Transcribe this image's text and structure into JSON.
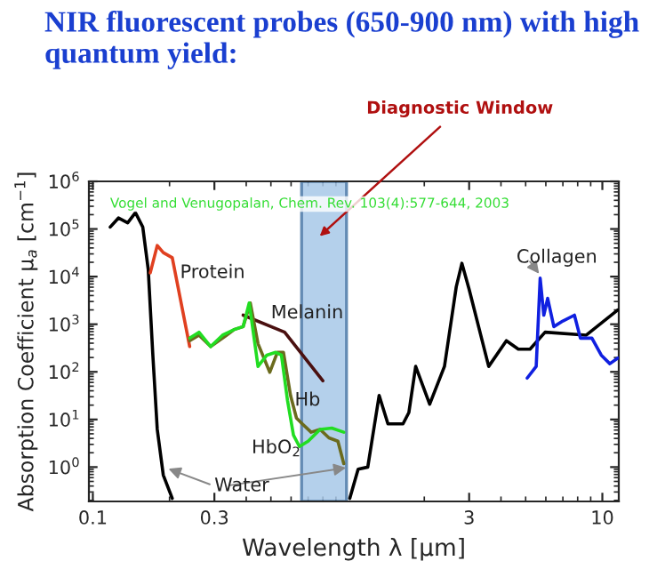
{
  "chart_data": {
    "type": "line",
    "title": "NIR fluorescent probes (650-900 nm) with high quantum yield:",
    "xlabel": "Wavelength λ [μm]",
    "ylabel": "Absorption Coefficient μ$_{a}$ [cm$^{−1}$]",
    "log": "xy",
    "xlim": [
      0.0965,
      11.6
    ],
    "ylim": [
      0.19,
      1000000
    ],
    "xticks": [
      0.1,
      0.3,
      3,
      10
    ],
    "yticks": [
      {
        "value": 1,
        "label": "10$^{0}$"
      },
      {
        "value": 10,
        "label": "10$^{1}$"
      },
      {
        "value": 100,
        "label": "10$^{2}$"
      },
      {
        "value": 1000,
        "label": "10$^{3}$"
      },
      {
        "value": 10000,
        "label": "10$^{4}$"
      },
      {
        "value": 100000,
        "label": "10$^{5}$"
      },
      {
        "value": 1000000,
        "label": "10$^{6}$"
      }
    ],
    "grid": false,
    "legend": false,
    "series": [
      {
        "name": "Water",
        "color": "#000000",
        "x": [
          0.117,
          0.126,
          0.137,
          0.147,
          0.157,
          0.165,
          0.172,
          0.179,
          0.189,
          0.205,
          0.5,
          1.02,
          1.1,
          1.2,
          1.33,
          1.44,
          1.65,
          1.74,
          1.85,
          2.1,
          2.4,
          2.67,
          2.81,
          3.0,
          3.58,
          4.2,
          4.68,
          5.2,
          5.96,
          8.65,
          11.5
        ],
        "values": [
          110000,
          170000,
          135000,
          220000,
          110000,
          14000,
          224,
          6.2,
          0.68,
          0.22,
          null,
          0.22,
          0.9,
          1.0,
          32,
          8.1,
          8.1,
          14,
          130,
          21,
          130,
          6100,
          19000,
          5400,
          130,
          450,
          300,
          300,
          680,
          590,
          2000
        ]
      },
      {
        "name": "Protein",
        "color": "#e04020",
        "x": [
          0.168,
          0.179,
          0.189,
          0.205,
          0.24
        ],
        "values": [
          12000,
          45000,
          32000,
          25000,
          340
        ]
      },
      {
        "name": "Melanin",
        "color": "#4a1010",
        "x": [
          0.389,
          0.566,
          0.8
        ],
        "values": [
          1550,
          680,
          65
        ]
      },
      {
        "name": "Hb",
        "color": "#6b6b1e",
        "x": [
          0.24,
          0.261,
          0.29,
          0.323,
          0.359,
          0.389,
          0.415,
          0.445,
          0.495,
          0.53,
          0.56,
          0.597,
          0.63,
          0.664,
          0.719,
          0.78,
          0.845,
          0.916,
          0.966
        ],
        "values": [
          450,
          590,
          340,
          510,
          775,
          890,
          2800,
          390,
          98,
          257,
          257,
          32,
          10.7,
          8.1,
          5.4,
          6.2,
          4.1,
          3.5,
          1.18
        ]
      },
      {
        "name": "HbO$_{2}$",
        "color": "#22dd22",
        "x": [
          0.24,
          0.261,
          0.29,
          0.323,
          0.359,
          0.389,
          0.411,
          0.445,
          0.482,
          0.522,
          0.55,
          0.581,
          0.613,
          0.647,
          0.7,
          0.78,
          0.867,
          0.966
        ],
        "values": [
          510,
          680,
          340,
          590,
          775,
          890,
          2800,
          130,
          224,
          257,
          224,
          25,
          4.7,
          2.7,
          3.5,
          6.2,
          6.6,
          5.4
        ]
      },
      {
        "name": "Collagen",
        "color": "#1020e0",
        "x": [
          5.07,
          5.5,
          5.7,
          5.89,
          6.1,
          6.45,
          7.0,
          7.77,
          8.2,
          9.1,
          9.9,
          10.7,
          11.5
        ],
        "values": [
          74,
          130,
          9300,
          1550,
          3500,
          890,
          1170,
          1550,
          510,
          510,
          224,
          148,
          195
        ]
      }
    ],
    "bands": [
      {
        "axis": "x",
        "from": 0.66,
        "to": 0.99,
        "label": "Diagnostic Window",
        "color": "#a8c8e8"
      }
    ],
    "annotations": [
      "Vogel and Venugopalan, Chem. Rev. 103(4):577-644, 2003"
    ]
  }
}
